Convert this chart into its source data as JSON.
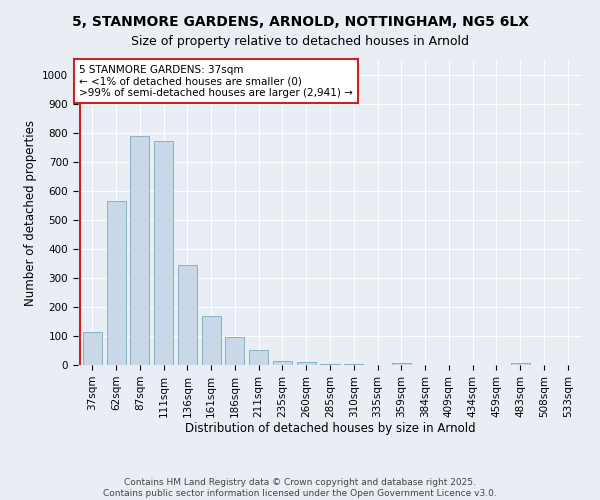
{
  "title_line1": "5, STANMORE GARDENS, ARNOLD, NOTTINGHAM, NG5 6LX",
  "title_line2": "Size of property relative to detached houses in Arnold",
  "xlabel": "Distribution of detached houses by size in Arnold",
  "ylabel": "Number of detached properties",
  "categories": [
    "37sqm",
    "62sqm",
    "87sqm",
    "111sqm",
    "136sqm",
    "161sqm",
    "186sqm",
    "211sqm",
    "235sqm",
    "260sqm",
    "285sqm",
    "310sqm",
    "335sqm",
    "359sqm",
    "384sqm",
    "409sqm",
    "434sqm",
    "459sqm",
    "483sqm",
    "508sqm",
    "533sqm"
  ],
  "values": [
    113,
    565,
    790,
    770,
    345,
    168,
    97,
    52,
    14,
    12,
    5,
    5,
    0,
    7,
    0,
    0,
    0,
    0,
    7,
    0,
    0
  ],
  "bar_color": "#c8d8e8",
  "bar_edge_color": "#7aaabb",
  "highlight_color": "#cc2222",
  "annotation_text": "5 STANMORE GARDENS: 37sqm\n← <1% of detached houses are smaller (0)\n>99% of semi-detached houses are larger (2,941) →",
  "ylim": [
    0,
    1050
  ],
  "yticks": [
    0,
    100,
    200,
    300,
    400,
    500,
    600,
    700,
    800,
    900,
    1000
  ],
  "background_color": "#e8eef4",
  "plot_background": "#e8eef4",
  "footer": "Contains HM Land Registry data © Crown copyright and database right 2025.\nContains public sector information licensed under the Open Government Licence v3.0.",
  "title_fontsize": 10,
  "subtitle_fontsize": 9,
  "axis_label_fontsize": 8.5,
  "tick_fontsize": 7.5,
  "annotation_fontsize": 7.5,
  "footer_fontsize": 6.5
}
